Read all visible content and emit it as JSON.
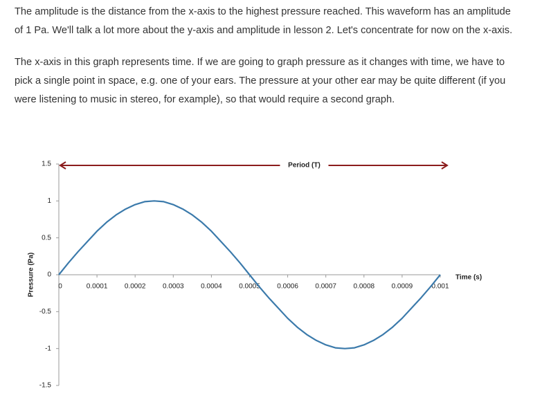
{
  "paragraphs": [
    "The amplitude is the distance from the x-axis to the highest pressure reached. This waveform has an amplitude of 1 Pa. We'll talk a lot more about the y-axis and amplitude in lesson 2. Let's concentrate for now on the x-axis.",
    "The x-axis in this graph represents time. If we are going to graph pressure as it changes with time, we have to pick a single point in space, e.g. one of your ears. The pressure at your other ear may be quite different (if you were listening to music in stereo, for example), so that would require a second graph."
  ],
  "chart_data": {
    "type": "line",
    "x_label": "Time (s)",
    "y_label": "Pressure (Pa)",
    "annotation": "Period (T)",
    "x": [
      0,
      2.5e-05,
      5e-05,
      7.5e-05,
      0.0001,
      0.000125,
      0.00015,
      0.000175,
      0.0002,
      0.000225,
      0.00025,
      0.000275,
      0.0003,
      0.000325,
      0.00035,
      0.000375,
      0.0004,
      0.000425,
      0.00045,
      0.000475,
      0.0005,
      0.000525,
      0.00055,
      0.000575,
      0.0006,
      0.000625,
      0.00065,
      0.000675,
      0.0007,
      0.000725,
      0.00075,
      0.000775,
      0.0008,
      0.000825,
      0.00085,
      0.000875,
      0.0009,
      0.000925,
      0.00095,
      0.000975,
      0.001
    ],
    "series": [
      {
        "color": "#3b7aab",
        "values": [
          0,
          0.16,
          0.31,
          0.45,
          0.59,
          0.71,
          0.81,
          0.89,
          0.95,
          0.99,
          1,
          0.99,
          0.95,
          0.89,
          0.81,
          0.71,
          0.59,
          0.45,
          0.31,
          0.16,
          0,
          -0.16,
          -0.31,
          -0.45,
          -0.59,
          -0.71,
          -0.81,
          -0.89,
          -0.95,
          -0.99,
          -1,
          -0.99,
          -0.95,
          -0.89,
          -0.81,
          -0.71,
          -0.59,
          -0.45,
          -0.31,
          -0.16,
          0
        ]
      }
    ],
    "xlim": [
      0,
      0.001
    ],
    "xticks": [
      0,
      0.0001,
      0.0002,
      0.0003,
      0.0004,
      0.0005,
      0.0006,
      0.0007,
      0.0008,
      0.0009,
      0.001
    ],
    "ylim": [
      -1.5,
      1.5
    ],
    "yticks": [
      -1.5,
      -1,
      -0.5,
      0,
      0.5,
      1,
      1.5
    ],
    "annotation_color": "#8b1c1c"
  }
}
